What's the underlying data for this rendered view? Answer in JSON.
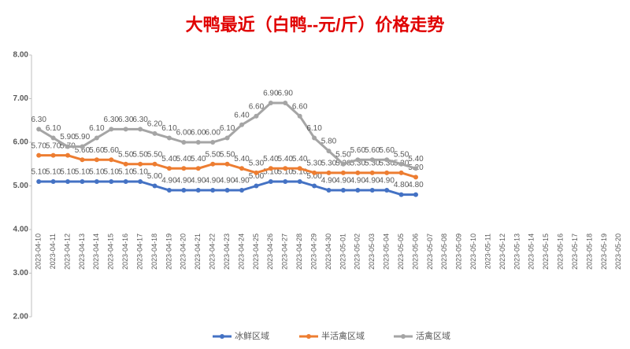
{
  "chart_data": {
    "type": "line",
    "title": "大鸭最近（白鸭--元/斤）价格走势",
    "categories": [
      "2023-04-10",
      "2023-04-11",
      "2023-04-12",
      "2023-04-13",
      "2023-04-14",
      "2023-04-15",
      "2023-04-16",
      "2023-04-17",
      "2023-04-18",
      "2023-04-19",
      "2023-04-20",
      "2023-04-21",
      "2023-04-22",
      "2023-04-23",
      "2023-04-24",
      "2023-04-25",
      "2023-04-26",
      "2023-04-27",
      "2023-04-28",
      "2023-04-29",
      "2023-04-30",
      "2023-05-01",
      "2023-05-02",
      "2023-05-03",
      "2023-05-04",
      "2023-05-05",
      "2023-05-06",
      "2023-05-07",
      "2023-05-08",
      "2023-05-09",
      "2023-05-10",
      "2023-05-11",
      "2023-05-12",
      "2023-05-13",
      "2023-05-14",
      "2023-05-15",
      "2023-05-16",
      "2023-05-17",
      "2023-05-18",
      "2023-05-19",
      "2023-05-20"
    ],
    "series": [
      {
        "name": "冰鲜区域",
        "color": "#4472c4",
        "values": [
          5.1,
          5.1,
          5.1,
          5.1,
          5.1,
          5.1,
          5.1,
          5.1,
          5.0,
          4.9,
          4.9,
          4.9,
          4.9,
          4.9,
          4.9,
          5.0,
          5.1,
          5.1,
          5.1,
          5.0,
          4.9,
          4.9,
          4.9,
          4.9,
          4.9,
          4.8,
          4.8,
          null,
          null,
          null,
          null,
          null,
          null,
          null,
          null,
          null,
          null,
          null,
          null,
          null,
          null
        ],
        "value_labels": [
          "5.10",
          "5.10",
          "5.10",
          "5.10",
          "5.10",
          "5.10",
          "5.10",
          "5.10",
          "5.00",
          "4.90",
          "4.90",
          "4.90",
          "4.90",
          "4.90",
          "4.90",
          "5.00",
          "5.10",
          "5.10",
          "5.10",
          "5.00",
          "4.90",
          "4.90",
          "4.90",
          "4.90",
          "4.90",
          "4.80",
          "4.80",
          null,
          null,
          null,
          null,
          null,
          null,
          null,
          null,
          null,
          null,
          null,
          null,
          null,
          null
        ]
      },
      {
        "name": "半活禽区域",
        "color": "#ed7d31",
        "values": [
          5.7,
          5.7,
          5.7,
          5.6,
          5.6,
          5.6,
          5.5,
          5.5,
          5.5,
          5.4,
          5.4,
          5.4,
          5.5,
          5.5,
          5.4,
          5.3,
          5.4,
          5.4,
          5.4,
          5.3,
          5.3,
          5.3,
          5.3,
          5.3,
          5.3,
          5.3,
          5.2,
          null,
          null,
          null,
          null,
          null,
          null,
          null,
          null,
          null,
          null,
          null,
          null,
          null,
          null
        ],
        "value_labels": [
          "5.70",
          "5.70",
          "5.70",
          "5.60",
          "5.60",
          "5.60",
          "5.50",
          "5.50",
          "5.50",
          "5.40",
          "5.40",
          "5.40",
          "5.50",
          "5.50",
          "5.40",
          "5.30",
          "5.40",
          "5.40",
          "5.40",
          "5.30",
          "5.30",
          "5.30",
          "5.30",
          "5.30",
          "5.30",
          "5.30",
          "5.20",
          null,
          null,
          null,
          null,
          null,
          null,
          null,
          null,
          null,
          null,
          null,
          null,
          null,
          null
        ]
      },
      {
        "name": "活禽区域",
        "color": "#a5a5a5",
        "values": [
          6.3,
          6.1,
          5.9,
          5.9,
          6.1,
          6.3,
          6.3,
          6.3,
          6.2,
          6.1,
          6.0,
          6.0,
          6.0,
          6.1,
          6.4,
          6.6,
          6.9,
          6.9,
          6.6,
          6.1,
          5.8,
          5.5,
          5.6,
          5.6,
          5.6,
          5.5,
          5.4,
          null,
          null,
          null,
          null,
          null,
          null,
          null,
          null,
          null,
          null,
          null,
          null,
          null,
          null
        ],
        "value_labels": [
          "6.30",
          "6.10",
          "5.90",
          "5.90",
          "6.10",
          "6.30",
          "6.30",
          "6.30",
          "6.20",
          "6.10",
          "6.00",
          "6.00",
          "6.00",
          "6.10",
          "6.40",
          "6.60",
          "6.90",
          "6.90",
          "6.60",
          "6.10",
          "5.80",
          "5.50",
          "5.60",
          "5.60",
          "5.60",
          "5.50",
          "5.40",
          null,
          null,
          null,
          null,
          null,
          null,
          null,
          null,
          null,
          null,
          null,
          null,
          null,
          null
        ]
      }
    ],
    "ylim": [
      2,
      8
    ],
    "yticks": [
      {
        "value": 2,
        "label": "2.00"
      },
      {
        "value": 3,
        "label": "3.00"
      },
      {
        "value": 4,
        "label": "4.00"
      },
      {
        "value": 5,
        "label": "5.00"
      },
      {
        "value": 6,
        "label": "6.00"
      },
      {
        "value": 7,
        "label": "7.00"
      },
      {
        "value": 8,
        "label": "8.00"
      }
    ],
    "grid": false,
    "legend": "bottom"
  }
}
